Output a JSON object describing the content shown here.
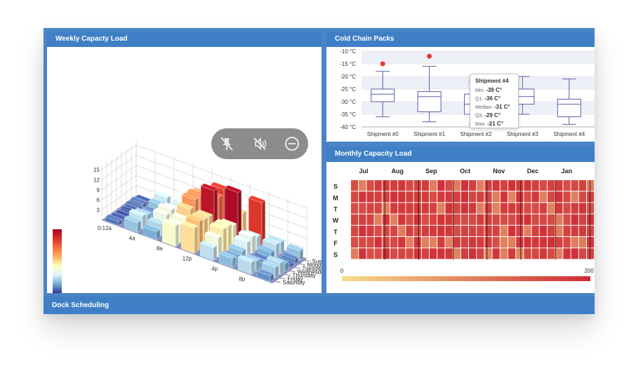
{
  "panels": {
    "weekly": {
      "title": "Weekly Capacty Load"
    },
    "cold": {
      "title": "Cold Chain Packs"
    },
    "monthly": {
      "title": "Monthly Capacity Load"
    },
    "dock": {
      "title": "Dock Scheduling"
    }
  },
  "overlay": {
    "icons": [
      "unpin-icon",
      "mute-icon",
      "minus-circle-icon"
    ]
  },
  "tooltip": {
    "title": "Shipment #4",
    "rows": [
      {
        "label": "Min:",
        "value": "-39 C°"
      },
      {
        "label": "Q1:",
        "value": "-36 C°"
      },
      {
        "label": "Median:",
        "value": "-31 C°"
      },
      {
        "label": "Q3:",
        "value": "-29 C°"
      },
      {
        "label": "Max:",
        "value": "-21 C°"
      }
    ]
  },
  "chart_data": [
    {
      "type": "bar3d",
      "z_ticks": [
        "3",
        "6",
        "9",
        "12",
        "15"
      ],
      "x_ticks": [
        "0:12a",
        "4a",
        "8a",
        "12p",
        "4p",
        "8p"
      ],
      "y_ticks": [
        "Sunday",
        "Monday",
        "Tuesday",
        "Wednesday",
        "Thursday",
        "Friday",
        "Saturday"
      ],
      "colorscale": [
        "#313695",
        "#74add1",
        "#e0f3f8",
        "#ffffbf",
        "#fdae61",
        "#f46d43",
        "#d73027",
        "#a50026"
      ]
    },
    {
      "type": "boxplot",
      "categories": [
        "Shipment #0",
        "Shipment #1",
        "Shipment #2",
        "Shipment #3",
        "Shipment #4"
      ],
      "y_ticks": [
        "-10 °C",
        "-15 °C",
        "-20 °C",
        "-25 °C",
        "-30 °C",
        "-35 °C",
        "-40 °C"
      ],
      "ylim": [
        -40,
        -10
      ],
      "boxes": [
        {
          "min": -36,
          "q1": -30,
          "median": -27,
          "q3": -25,
          "max": -18
        },
        {
          "min": -38,
          "q1": -34,
          "median": -28,
          "q3": -26,
          "max": -16
        },
        {
          "min": -39,
          "q1": -35,
          "median": -31,
          "q3": -27,
          "max": -22
        },
        {
          "min": -35,
          "q1": -31,
          "median": -28,
          "q3": -25,
          "max": -20
        },
        {
          "min": -39,
          "q1": -36,
          "median": -31,
          "q3": -29,
          "max": -21
        }
      ],
      "outliers": [
        {
          "category": 0,
          "value": -15
        },
        {
          "category": 1,
          "value": -12
        }
      ]
    },
    {
      "type": "heatmap",
      "months": [
        "Jul",
        "Aug",
        "Sep",
        "Oct",
        "Nov",
        "Dec",
        "Jan"
      ],
      "days": [
        "S",
        "M",
        "T",
        "W",
        "T",
        "F",
        "S"
      ],
      "scale_min": "0",
      "scale_max": "200",
      "color_low": "#f7dc8a",
      "color_high": "#cf2b35"
    }
  ]
}
